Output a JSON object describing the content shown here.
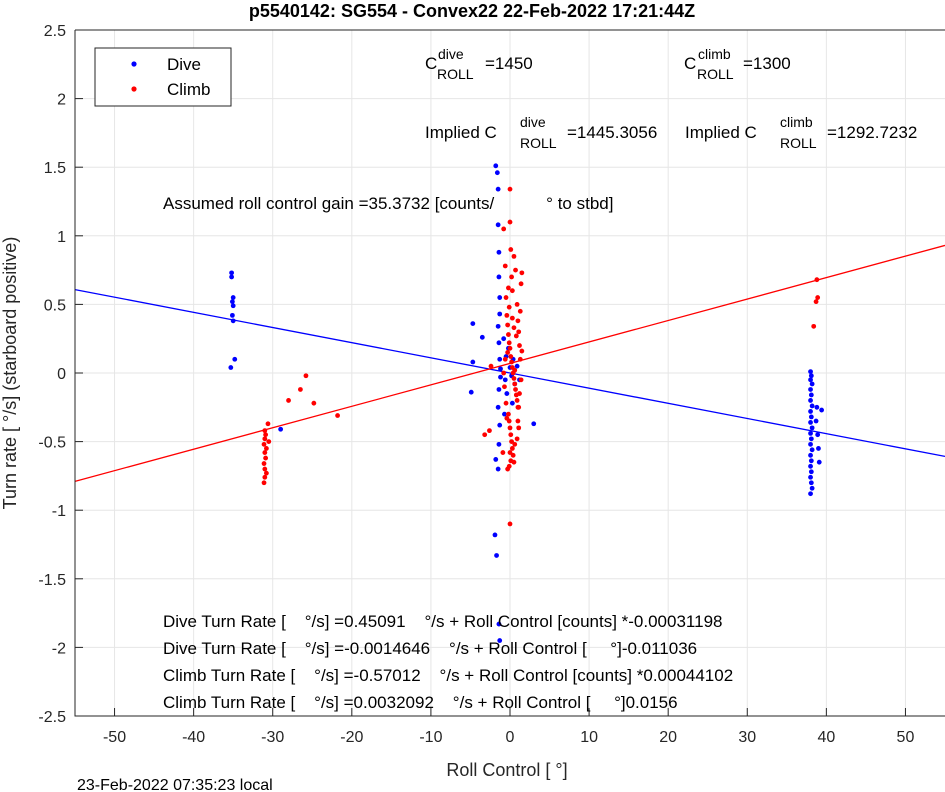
{
  "chart_data": {
    "type": "scatter",
    "title": "p5540142: SG554 - Convex22 22-Feb-2022 17:21:44Z",
    "xlabel": "Roll Control [   °]",
    "ylabel": "Turn rate [   °/s] (starboard positive)",
    "xlim": [
      -55,
      55
    ],
    "ylim": [
      -2.5,
      2.5
    ],
    "xticks": [
      -50,
      -40,
      -30,
      -20,
      -10,
      0,
      10,
      20,
      30,
      40,
      50
    ],
    "yticks": [
      -2.5,
      -2,
      -1.5,
      -1,
      -0.5,
      0,
      0.5,
      1,
      1.5,
      2,
      2.5
    ],
    "grid": true,
    "legend": {
      "position": "top-left",
      "entries": [
        "Dive",
        "Climb"
      ]
    },
    "series": [
      {
        "name": "Dive",
        "color": "#0000ff",
        "points": [
          [
            -35.2,
            0.73
          ],
          [
            -35.2,
            0.7
          ],
          [
            -35.0,
            0.55
          ],
          [
            -35.1,
            0.52
          ],
          [
            -35.0,
            0.49
          ],
          [
            -35.1,
            0.42
          ],
          [
            -35.0,
            0.38
          ],
          [
            -34.8,
            0.1
          ],
          [
            -35.3,
            0.04
          ],
          [
            -29.0,
            -0.41
          ],
          [
            -4.7,
            0.36
          ],
          [
            -4.7,
            0.08
          ],
          [
            -4.9,
            -0.14
          ],
          [
            -3.5,
            0.26
          ],
          [
            -1.8,
            1.51
          ],
          [
            -1.6,
            1.46
          ],
          [
            -1.5,
            1.34
          ],
          [
            -1.5,
            1.08
          ],
          [
            -1.4,
            0.88
          ],
          [
            -1.4,
            0.7
          ],
          [
            -1.3,
            0.55
          ],
          [
            -1.3,
            0.43
          ],
          [
            -1.5,
            0.34
          ],
          [
            -1.4,
            0.22
          ],
          [
            -1.3,
            0.1
          ],
          [
            -1.2,
            0.03
          ],
          [
            -1.2,
            -0.03
          ],
          [
            -1.4,
            -0.12
          ],
          [
            -1.5,
            -0.25
          ],
          [
            -1.3,
            -0.38
          ],
          [
            -1.4,
            -0.52
          ],
          [
            -1.8,
            -0.63
          ],
          [
            -1.5,
            -0.7
          ],
          [
            -1.9,
            -1.18
          ],
          [
            -1.7,
            -1.33
          ],
          [
            -1.4,
            -1.83
          ],
          [
            -1.3,
            -1.95
          ],
          [
            -0.8,
            0.25
          ],
          [
            -0.5,
            0.12
          ],
          [
            -0.6,
            -0.05
          ],
          [
            -0.4,
            -0.15
          ],
          [
            -0.7,
            -0.3
          ],
          [
            -0.2,
            0.18
          ],
          [
            0.0,
            0.04
          ],
          [
            0.2,
            -0.02
          ],
          [
            0.4,
            0.1
          ],
          [
            0.6,
            -0.08
          ],
          [
            0.3,
            -0.22
          ],
          [
            0.9,
            0.05
          ],
          [
            1.2,
            -0.05
          ],
          [
            3.0,
            -0.37
          ],
          [
            38.0,
            0.01
          ],
          [
            38.1,
            -0.02
          ],
          [
            38.0,
            -0.05
          ],
          [
            38.2,
            -0.08
          ],
          [
            38.0,
            -0.12
          ],
          [
            38.1,
            -0.16
          ],
          [
            38.0,
            -0.2
          ],
          [
            38.2,
            -0.24
          ],
          [
            38.0,
            -0.28
          ],
          [
            38.1,
            -0.32
          ],
          [
            38.0,
            -0.36
          ],
          [
            38.2,
            -0.4
          ],
          [
            38.0,
            -0.44
          ],
          [
            38.1,
            -0.48
          ],
          [
            38.0,
            -0.52
          ],
          [
            38.2,
            -0.56
          ],
          [
            38.0,
            -0.6
          ],
          [
            38.1,
            -0.64
          ],
          [
            38.0,
            -0.68
          ],
          [
            38.1,
            -0.72
          ],
          [
            38.0,
            -0.76
          ],
          [
            38.1,
            -0.8
          ],
          [
            38.2,
            -0.84
          ],
          [
            38.0,
            -0.88
          ],
          [
            38.8,
            -0.25
          ],
          [
            38.9,
            -0.45
          ],
          [
            39.0,
            -0.55
          ],
          [
            39.1,
            -0.65
          ],
          [
            38.7,
            -0.35
          ],
          [
            39.4,
            -0.27
          ]
        ]
      },
      {
        "name": "Climb",
        "color": "#ff0000",
        "points": [
          [
            -31.0,
            -0.42
          ],
          [
            -30.9,
            -0.45
          ],
          [
            -31.0,
            -0.48
          ],
          [
            -31.1,
            -0.52
          ],
          [
            -30.8,
            -0.55
          ],
          [
            -31.0,
            -0.58
          ],
          [
            -30.9,
            -0.62
          ],
          [
            -31.1,
            -0.66
          ],
          [
            -31.0,
            -0.7
          ],
          [
            -30.8,
            -0.73
          ],
          [
            -31.0,
            -0.76
          ],
          [
            -31.1,
            -0.8
          ],
          [
            -30.6,
            -0.37
          ],
          [
            -30.5,
            -0.5
          ],
          [
            -28.0,
            -0.2
          ],
          [
            -26.5,
            -0.12
          ],
          [
            -25.8,
            -0.02
          ],
          [
            -24.8,
            -0.22
          ],
          [
            -21.8,
            -0.31
          ],
          [
            -0.8,
            1.05
          ],
          [
            -0.6,
            0.78
          ],
          [
            -0.5,
            0.55
          ],
          [
            -0.4,
            0.42
          ],
          [
            -0.3,
            0.35
          ],
          [
            -0.2,
            0.28
          ],
          [
            -0.1,
            0.22
          ],
          [
            0.0,
            0.18
          ],
          [
            0.1,
            0.12
          ],
          [
            0.2,
            0.08
          ],
          [
            0.3,
            0.04
          ],
          [
            0.4,
            0.0
          ],
          [
            0.5,
            -0.04
          ],
          [
            0.6,
            -0.08
          ],
          [
            0.7,
            -0.12
          ],
          [
            0.8,
            -0.16
          ],
          [
            0.9,
            -0.2
          ],
          [
            1.0,
            -0.25
          ],
          [
            -0.2,
            -0.3
          ],
          [
            -0.1,
            -0.35
          ],
          [
            0.0,
            -0.4
          ],
          [
            0.1,
            -0.45
          ],
          [
            0.2,
            -0.5
          ],
          [
            0.3,
            -0.55
          ],
          [
            0.4,
            -0.6
          ],
          [
            0.5,
            -0.65
          ],
          [
            -0.3,
            -0.7
          ],
          [
            -0.4,
            -0.33
          ],
          [
            -0.5,
            -0.22
          ],
          [
            -0.6,
            0.1
          ],
          [
            -0.7,
            -0.1
          ],
          [
            -0.8,
            0.0
          ],
          [
            0.0,
            1.34
          ],
          [
            0.0,
            1.1
          ],
          [
            0.1,
            0.9
          ],
          [
            0.2,
            0.7
          ],
          [
            0.3,
            0.6
          ],
          [
            0.9,
            0.5
          ],
          [
            1.0,
            0.38
          ],
          [
            1.1,
            0.3
          ],
          [
            1.2,
            0.2
          ],
          [
            1.3,
            0.1
          ],
          [
            1.4,
            -0.05
          ],
          [
            1.2,
            -0.15
          ],
          [
            1.1,
            -0.25
          ],
          [
            1.0,
            -0.35
          ],
          [
            1.3,
            0.45
          ],
          [
            1.4,
            0.65
          ],
          [
            0.7,
            0.75
          ],
          [
            0.5,
            0.85
          ],
          [
            1.5,
            0.73
          ],
          [
            0.9,
            -0.48
          ],
          [
            0.6,
            -0.52
          ],
          [
            0.0,
            -0.58
          ],
          [
            0.1,
            -0.64
          ],
          [
            -0.1,
            -0.68
          ],
          [
            -2.4,
            0.05
          ],
          [
            -2.6,
            -0.42
          ],
          [
            -3.2,
            -0.45
          ],
          [
            0.0,
            -1.1
          ],
          [
            -0.9,
            -0.58
          ],
          [
            -0.2,
            0.62
          ],
          [
            -0.1,
            0.48
          ],
          [
            0.3,
            0.4
          ],
          [
            0.5,
            0.33
          ],
          [
            0.8,
            0.27
          ],
          [
            -0.3,
            0.15
          ],
          [
            0.6,
            0.02
          ],
          [
            1.1,
            -0.4
          ],
          [
            1.5,
            0.16
          ],
          [
            38.8,
            0.68
          ],
          [
            38.9,
            0.55
          ],
          [
            38.7,
            0.52
          ],
          [
            38.4,
            0.34
          ]
        ]
      }
    ],
    "fit_lines": [
      {
        "name": "Dive fit",
        "color": "#0000ff",
        "x": [
          -55,
          55
        ],
        "y": [
          0.608,
          -0.608
        ]
      },
      {
        "name": "Climb fit",
        "color": "#ff0000",
        "x": [
          -55,
          55
        ],
        "y": [
          -0.79,
          0.93
        ]
      }
    ],
    "annotations": {
      "c_dive_main": "C",
      "c_dive_sup": "dive",
      "c_dive_sub": "ROLL",
      "c_dive_val": "=1450",
      "c_climb_main": "C",
      "c_climb_sup": "climb",
      "c_climb_sub": "ROLL",
      "c_climb_val": "=1300",
      "implied_dive_main": "Implied C",
      "implied_dive_sup": "dive",
      "implied_dive_sub": "ROLL",
      "implied_dive_val": "=1445.3056",
      "implied_climb_main": "Implied C",
      "implied_climb_sup": "climb",
      "implied_climb_sub": "ROLL",
      "implied_climb_val": "=1292.7232",
      "gain_text": "Assumed roll control gain =35.3732 [counts/           ° to stbd]",
      "fit1": "Dive Turn Rate [    °/s] =0.45091    °/s + Roll Control [counts] *-0.00031198",
      "fit2": "Dive Turn Rate [    °/s] =-0.0014646    °/s + Roll Control [     °]-0.011036",
      "fit3": "Climb Turn Rate [    °/s] =-0.57012    °/s + Roll Control [counts] *0.00044102",
      "fit4": "Climb Turn Rate [    °/s] =0.0032092    °/s + Roll Control [     °]0.0156"
    },
    "footer": "23-Feb-2022 07:35:23 local"
  }
}
